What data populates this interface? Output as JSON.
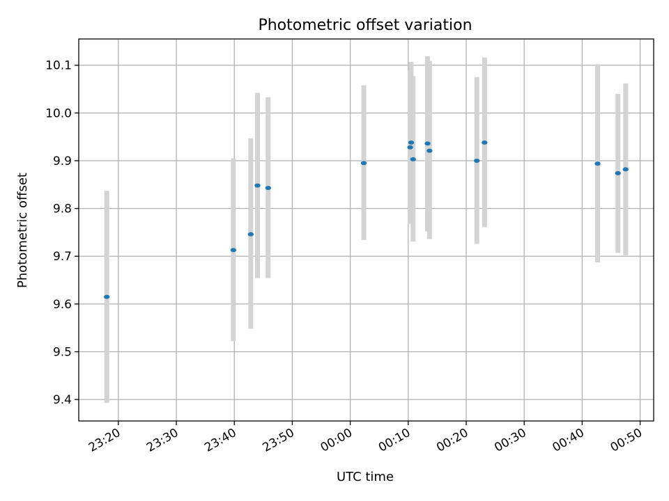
{
  "chart_data": {
    "type": "scatter",
    "title": "Photometric offset variation",
    "xlabel": "UTC time",
    "ylabel": "Photometric offset",
    "xlim": [
      "23:13:10",
      "00:52:20"
    ],
    "ylim": [
      9.355,
      10.155
    ],
    "grid": true,
    "x_ticks": [
      "23:20",
      "23:30",
      "23:40",
      "23:50",
      "00:00",
      "00:10",
      "00:20",
      "00:30",
      "00:40",
      "00:50"
    ],
    "y_ticks": [
      "9.4",
      "9.5",
      "9.6",
      "9.7",
      "9.8",
      "9.9",
      "10.0",
      "10.1"
    ],
    "colors": {
      "points": "#1f77b4",
      "error_bars": "#d3d3d3",
      "grid": "#b0b0b0"
    },
    "series": [
      {
        "points": [
          {
            "x": "23:18:00",
            "y": 9.615,
            "lo": 9.393,
            "hi": 9.837
          },
          {
            "x": "23:39:50",
            "y": 9.713,
            "lo": 9.522,
            "hi": 9.905
          },
          {
            "x": "23:42:50",
            "y": 9.746,
            "lo": 9.548,
            "hi": 9.947
          },
          {
            "x": "23:44:00",
            "y": 9.848,
            "lo": 9.654,
            "hi": 10.042
          },
          {
            "x": "23:45:50",
            "y": 9.843,
            "lo": 9.654,
            "hi": 10.033
          },
          {
            "x": "00:02:20",
            "y": 9.895,
            "lo": 9.734,
            "hi": 10.058
          },
          {
            "x": "00:10:20",
            "y": 9.928,
            "lo": 9.768,
            "hi": 10.09
          },
          {
            "x": "00:10:30",
            "y": 9.938,
            "lo": 9.768,
            "hi": 10.107
          },
          {
            "x": "00:10:50",
            "y": 9.903,
            "lo": 9.731,
            "hi": 10.077
          },
          {
            "x": "00:13:20",
            "y": 9.936,
            "lo": 9.752,
            "hi": 10.119
          },
          {
            "x": "00:13:40",
            "y": 9.921,
            "lo": 9.736,
            "hi": 10.109
          },
          {
            "x": "00:21:50",
            "y": 9.9,
            "lo": 9.726,
            "hi": 10.075
          },
          {
            "x": "00:23:10",
            "y": 9.938,
            "lo": 9.761,
            "hi": 10.116
          },
          {
            "x": "00:42:40",
            "y": 9.894,
            "lo": 9.687,
            "hi": 10.102
          },
          {
            "x": "00:46:10",
            "y": 9.874,
            "lo": 9.707,
            "hi": 10.04
          },
          {
            "x": "00:47:30",
            "y": 9.882,
            "lo": 9.702,
            "hi": 10.062
          }
        ]
      }
    ]
  }
}
